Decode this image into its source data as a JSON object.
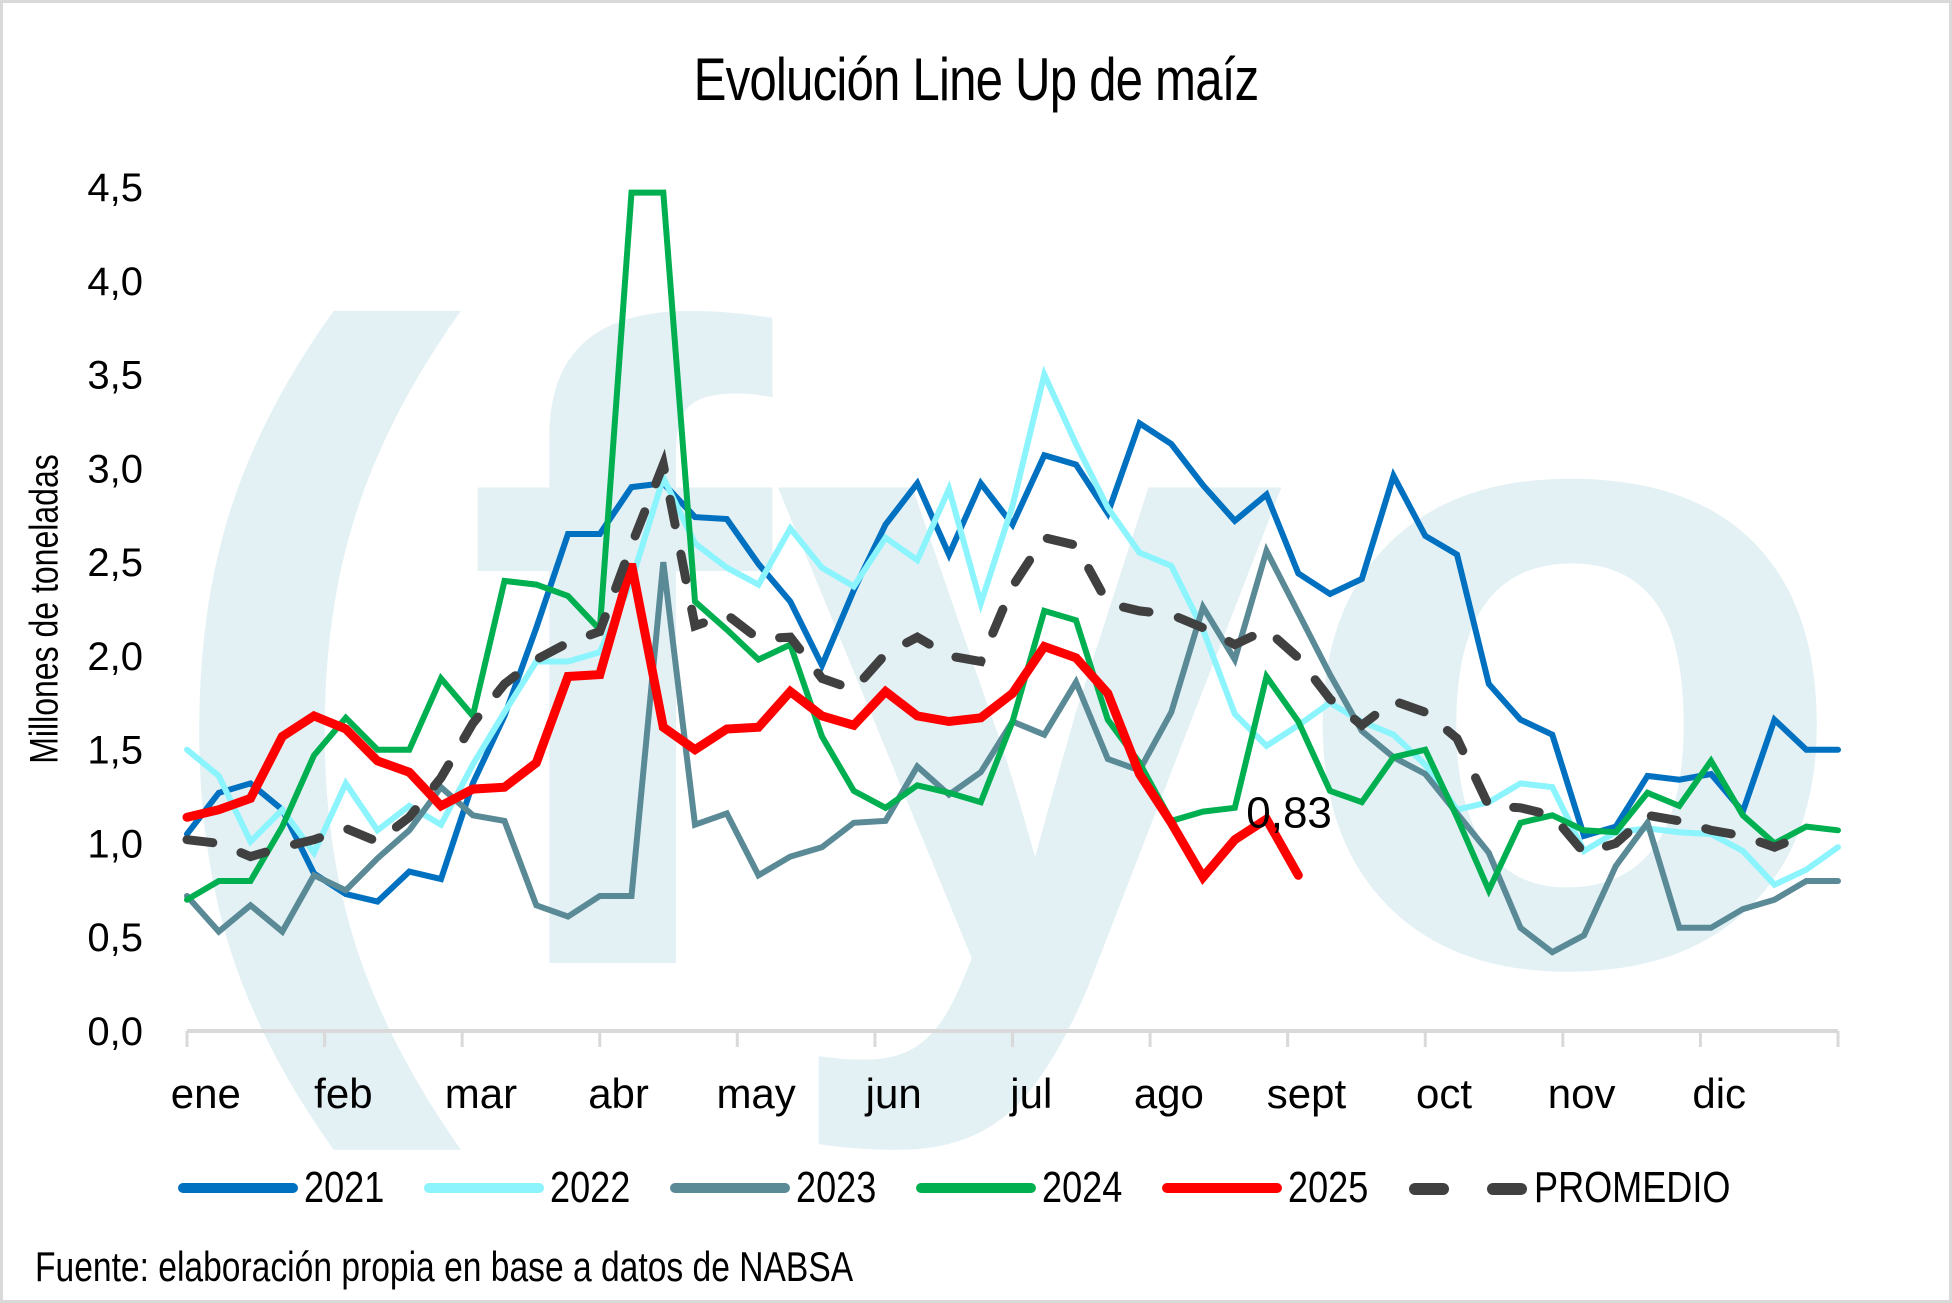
{
  "chart_data": {
    "type": "line",
    "title": "Evolución Line Up de maíz",
    "xlabel": "",
    "ylabel": "Millones de toneladas",
    "ylim": [
      0,
      4.5
    ],
    "yticks": [
      "0,0",
      "0,5",
      "1,0",
      "1,5",
      "2,0",
      "2,5",
      "3,0",
      "3,5",
      "4,0",
      "4,5"
    ],
    "ytick_values": [
      0,
      0.5,
      1.0,
      1.5,
      2.0,
      2.5,
      3.0,
      3.5,
      4.0,
      4.5
    ],
    "x_unit": "week",
    "x_count": 53,
    "categories": [
      "ene",
      "feb",
      "mar",
      "abr",
      "may",
      "jun",
      "jul",
      "ago",
      "sept",
      "oct",
      "nov",
      "dic"
    ],
    "grid": false,
    "legend": "bottom",
    "series": [
      {
        "name": "2021",
        "color": "#0070c0",
        "dashed": false,
        "values": [
          1.05,
          1.27,
          1.32,
          1.18,
          0.84,
          0.73,
          0.69,
          0.85,
          0.81,
          1.32,
          1.68,
          2.15,
          2.65,
          2.65,
          2.9,
          2.92,
          2.74,
          2.73,
          2.49,
          2.29,
          1.95,
          2.35,
          2.7,
          2.92,
          2.54,
          2.92,
          2.7,
          3.07,
          3.02,
          2.76,
          3.24,
          3.13,
          2.91,
          2.72,
          2.86,
          2.44,
          2.33,
          2.41,
          2.96,
          2.64,
          2.54,
          1.85,
          1.66,
          1.58,
          1.04,
          1.09,
          1.36,
          1.34,
          1.37,
          1.17,
          1.66,
          1.5,
          1.5
        ]
      },
      {
        "name": "2022",
        "color": "#8cf4fd",
        "dashed": false,
        "values": [
          1.5,
          1.36,
          1.01,
          1.18,
          0.95,
          1.32,
          1.07,
          1.2,
          1.1,
          1.42,
          1.7,
          1.97,
          1.97,
          2.02,
          2.4,
          2.95,
          2.6,
          2.47,
          2.38,
          2.68,
          2.47,
          2.37,
          2.63,
          2.51,
          2.89,
          2.28,
          2.8,
          3.5,
          3.13,
          2.79,
          2.55,
          2.48,
          2.14,
          1.69,
          1.52,
          1.63,
          1.75,
          1.65,
          1.58,
          1.42,
          1.18,
          1.22,
          1.32,
          1.3,
          0.96,
          1.06,
          1.08,
          1.06,
          1.05,
          0.96,
          0.78,
          0.86,
          0.98
        ]
      },
      {
        "name": "2023",
        "color": "#5a8a96",
        "dashed": false,
        "values": [
          0.72,
          0.53,
          0.67,
          0.53,
          0.83,
          0.75,
          0.92,
          1.07,
          1.3,
          1.15,
          1.12,
          0.67,
          0.61,
          0.72,
          0.72,
          2.5,
          1.1,
          1.16,
          0.83,
          0.93,
          0.98,
          1.11,
          1.12,
          1.41,
          1.26,
          1.38,
          1.65,
          1.58,
          1.86,
          1.45,
          1.39,
          1.7,
          2.26,
          1.98,
          2.56,
          2.23,
          1.9,
          1.6,
          1.46,
          1.37,
          1.16,
          0.95,
          0.55,
          0.42,
          0.51,
          0.88,
          1.11,
          0.55,
          0.55,
          0.65,
          0.7,
          0.8,
          0.8
        ]
      },
      {
        "name": "2024",
        "color": "#00b050",
        "dashed": false,
        "values": [
          0.7,
          0.8,
          0.8,
          1.09,
          1.47,
          1.67,
          1.5,
          1.5,
          1.88,
          1.68,
          2.4,
          2.38,
          2.32,
          2.14,
          4.47,
          4.47,
          2.29,
          2.14,
          1.98,
          2.06,
          1.57,
          1.28,
          1.19,
          1.31,
          1.27,
          1.22,
          1.65,
          2.24,
          2.19,
          1.66,
          1.43,
          1.12,
          1.17,
          1.19,
          1.89,
          1.65,
          1.28,
          1.22,
          1.46,
          1.5,
          1.14,
          0.75,
          1.11,
          1.15,
          1.07,
          1.06,
          1.27,
          1.2,
          1.44,
          1.15,
          1.0,
          1.09,
          1.07
        ]
      },
      {
        "name": "2025",
        "color": "#ff0000",
        "dashed": false,
        "values": [
          1.14,
          1.18,
          1.24,
          1.57,
          1.68,
          1.61,
          1.44,
          1.38,
          1.2,
          1.29,
          1.3,
          1.43,
          1.89,
          1.9,
          2.49,
          1.62,
          1.5,
          1.61,
          1.62,
          1.81,
          1.68,
          1.63,
          1.81,
          1.68,
          1.65,
          1.67,
          1.8,
          2.05,
          1.99,
          1.8,
          1.37,
          1.11,
          0.82,
          1.02,
          1.13,
          0.83
        ]
      },
      {
        "name": "PROMEDIO",
        "color": "#404040",
        "dashed": true,
        "values": [
          1.02,
          1.0,
          0.93,
          0.98,
          1.02,
          1.08,
          1.01,
          1.14,
          1.35,
          1.64,
          1.85,
          1.98,
          2.07,
          2.13,
          2.59,
          3.02,
          2.16,
          2.22,
          2.09,
          2.1,
          1.88,
          1.82,
          2.01,
          2.1,
          2.0,
          1.97,
          2.37,
          2.63,
          2.59,
          2.28,
          2.24,
          2.22,
          2.15,
          2.06,
          2.14,
          1.99,
          1.77,
          1.63,
          1.76,
          1.7,
          1.56,
          1.2,
          1.19,
          1.15,
          0.95,
          1.0,
          1.15,
          1.12,
          1.07,
          1.04,
          0.98,
          1.05
        ]
      }
    ],
    "annotations": [
      {
        "text": "0,83",
        "series": "2025",
        "point_index": 35,
        "value": 0.83
      }
    ]
  },
  "watermark": {
    "text": "(fyo",
    "color": "#e3f1f5"
  },
  "source": "Fuente: elaboración propia en base a datos de NABSA"
}
